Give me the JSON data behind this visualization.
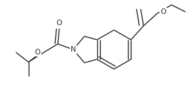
{
  "bg_color": "#ffffff",
  "line_color": "#2a2a2a",
  "line_width": 1.0,
  "figsize": [
    2.66,
    1.39
  ],
  "dpi": 100,
  "xlim": [
    0,
    266
  ],
  "ylim": [
    0,
    139
  ]
}
